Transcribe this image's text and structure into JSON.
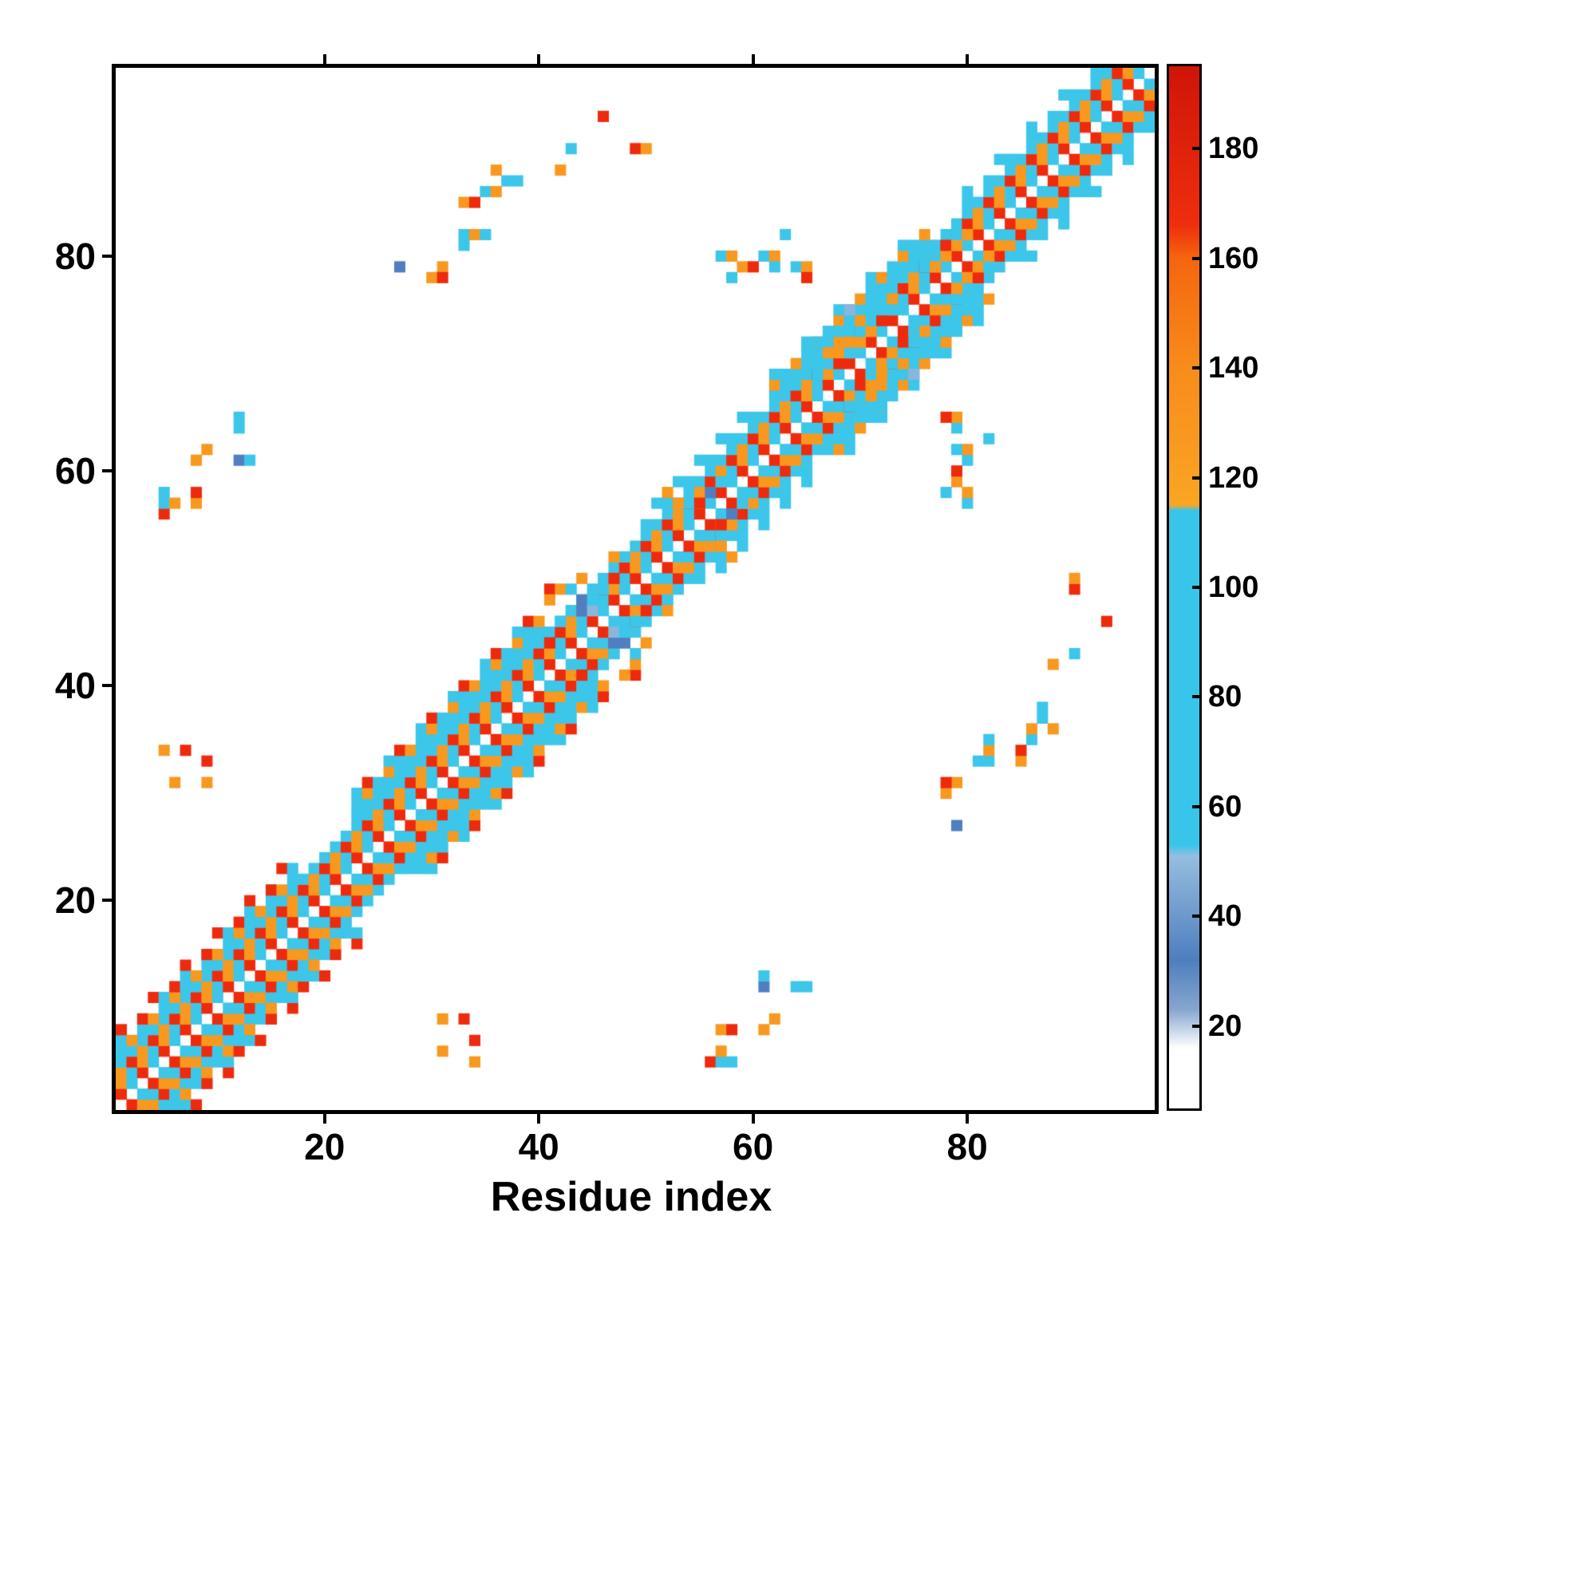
{
  "chart_data": {
    "type": "heatmap",
    "title": "",
    "xlabel": "Residue index",
    "ylabel": "Residue index",
    "n_residues": 97,
    "x_ticks": [
      20,
      40,
      60,
      80
    ],
    "y_ticks": [
      20,
      40,
      60,
      80
    ],
    "grid": false,
    "background": "#ffffff",
    "colorbar": {
      "ticks": [
        20,
        40,
        60,
        80,
        100,
        120,
        140,
        160,
        180
      ],
      "range": [
        5,
        195
      ],
      "stops": [
        {
          "v": 5,
          "c": "#cf1508"
        },
        {
          "v": 34,
          "c": "#ee2e0d"
        },
        {
          "v": 40,
          "c": "#f6650f"
        },
        {
          "v": 60,
          "c": "#f88c1a"
        },
        {
          "v": 85,
          "c": "#f9a623"
        },
        {
          "v": 86,
          "c": "#38c5ea"
        },
        {
          "v": 147,
          "c": "#38c5ea"
        },
        {
          "v": 149,
          "c": "#96bddf"
        },
        {
          "v": 168,
          "c": "#4d7fbd"
        },
        {
          "v": 177,
          "c": "#87a6cf"
        },
        {
          "v": 182,
          "c": "#dce6f2"
        },
        {
          "v": 184,
          "c": "#ffffff"
        },
        {
          "v": 195,
          "c": "#ffffff"
        }
      ]
    },
    "value_colors": [
      {
        "max": 38,
        "color": "#ee2a0d"
      },
      {
        "max": 86,
        "color": "#f8981f"
      },
      {
        "max": 148,
        "color": "#3cc6e9"
      },
      {
        "max": 158,
        "color": "#8ab6dc"
      },
      {
        "max": 176,
        "color": "#4f7fc0"
      },
      {
        "max": 999,
        "color": "#ffffff"
      }
    ],
    "symmetric": true,
    "band_segments": [
      {
        "s": 1,
        "e": 96,
        "off": [
          {
            "d": 1,
            "v": 20,
            "step": 2,
            "ph": 0
          },
          {
            "d": 1,
            "v": 110,
            "step": 2,
            "ph": 1
          },
          {
            "d": 2,
            "v": 65,
            "step": 2,
            "ph": 0
          },
          {
            "d": 2,
            "v": 110,
            "step": 2,
            "ph": 1
          },
          {
            "d": 3,
            "v": 65,
            "step": 2,
            "ph": 0
          },
          {
            "d": 3,
            "v": 20,
            "step": 2,
            "ph": 1
          },
          {
            "d": 4,
            "v": 110,
            "step": 1,
            "ph": 0
          }
        ]
      },
      {
        "s": 1,
        "e": 17,
        "off": [
          {
            "d": 5,
            "v": 110,
            "step": 2,
            "ph": 0
          },
          {
            "d": 5,
            "v": 65,
            "step": 2,
            "ph": 1
          },
          {
            "d": 6,
            "v": 110,
            "step": 2,
            "ph": 0
          },
          {
            "d": 6,
            "v": 20,
            "step": 3,
            "ph": 2
          },
          {
            "d": 7,
            "v": 20,
            "step": 3,
            "ph": 0
          }
        ]
      },
      {
        "s": 23,
        "e": 40,
        "off": [
          {
            "d": 5,
            "v": 110,
            "step": 1,
            "ph": 0
          },
          {
            "d": 6,
            "v": 110,
            "step": 2,
            "ph": 0
          },
          {
            "d": 6,
            "v": 65,
            "step": 2,
            "ph": 1
          },
          {
            "d": 7,
            "v": 110,
            "step": 3,
            "ph": 0
          },
          {
            "d": 7,
            "v": 20,
            "step": 3,
            "ph": 1
          }
        ]
      },
      {
        "s": 50,
        "e": 60,
        "off": [
          {
            "d": 5,
            "v": 110,
            "step": 2,
            "ph": 0
          },
          {
            "d": 6,
            "v": 110,
            "step": 2,
            "ph": 1
          }
        ]
      },
      {
        "s": 62,
        "e": 76,
        "off": [
          {
            "d": 5,
            "v": 110,
            "step": 1,
            "ph": 0
          },
          {
            "d": 6,
            "v": 65,
            "step": 2,
            "ph": 0
          },
          {
            "d": 6,
            "v": 110,
            "step": 2,
            "ph": 1
          },
          {
            "d": 7,
            "v": 110,
            "step": 3,
            "ph": 0
          }
        ]
      },
      {
        "s": 80,
        "e": 92,
        "off": [
          {
            "d": 5,
            "v": 110,
            "step": 2,
            "ph": 0
          },
          {
            "d": 6,
            "v": 110,
            "step": 3,
            "ph": 0
          }
        ]
      }
    ],
    "cells": [
      [
        27,
        79,
        165
      ],
      [
        30,
        78,
        65
      ],
      [
        31,
        79,
        65
      ],
      [
        31,
        78,
        20
      ],
      [
        33,
        81,
        110
      ],
      [
        33,
        82,
        110
      ],
      [
        34,
        82,
        65
      ],
      [
        33,
        85,
        65
      ],
      [
        34,
        85,
        20
      ],
      [
        35,
        82,
        110
      ],
      [
        35,
        86,
        110
      ],
      [
        36,
        86,
        65
      ],
      [
        36,
        88,
        65
      ],
      [
        37,
        87,
        110
      ],
      [
        38,
        87,
        110
      ],
      [
        42,
        88,
        65
      ],
      [
        43,
        90,
        110
      ],
      [
        46,
        93,
        20
      ],
      [
        49,
        90,
        20
      ],
      [
        50,
        90,
        65
      ],
      [
        57,
        80,
        110
      ],
      [
        58,
        80,
        65
      ],
      [
        58,
        78,
        110
      ],
      [
        59,
        79,
        65
      ],
      [
        60,
        79,
        20
      ],
      [
        61,
        80,
        110
      ],
      [
        62,
        80,
        65
      ],
      [
        62,
        79,
        110
      ],
      [
        63,
        82,
        110
      ],
      [
        64,
        79,
        110
      ],
      [
        65,
        79,
        65
      ],
      [
        65,
        78,
        20
      ],
      [
        5,
        56,
        20
      ],
      [
        5,
        57,
        110
      ],
      [
        5,
        58,
        110
      ],
      [
        6,
        57,
        65
      ],
      [
        8,
        57,
        65
      ],
      [
        8,
        58,
        20
      ],
      [
        8,
        61,
        65
      ],
      [
        9,
        62,
        65
      ],
      [
        12,
        61,
        165
      ],
      [
        12,
        64,
        110
      ],
      [
        12,
        65,
        110
      ],
      [
        13,
        61,
        110
      ],
      [
        5,
        34,
        65
      ],
      [
        7,
        34,
        20
      ],
      [
        6,
        31,
        65
      ],
      [
        9,
        33,
        20
      ],
      [
        9,
        31,
        65
      ],
      [
        41,
        49,
        20
      ],
      [
        42,
        49,
        65
      ],
      [
        43,
        47,
        110
      ],
      [
        44,
        47,
        165
      ],
      [
        44,
        48,
        165
      ],
      [
        45,
        47,
        152
      ],
      [
        45,
        48,
        110
      ],
      [
        46,
        49,
        110
      ],
      [
        41,
        48,
        65
      ],
      [
        42,
        46,
        110
      ],
      [
        43,
        49,
        110
      ],
      [
        47,
        50,
        20
      ],
      [
        44,
        50,
        65
      ],
      [
        41,
        44,
        20
      ],
      [
        48,
        52,
        110
      ],
      [
        47,
        52,
        65
      ],
      [
        54,
        57,
        110
      ],
      [
        55,
        58,
        65
      ],
      [
        56,
        58,
        165
      ],
      [
        55,
        57,
        20
      ],
      [
        53,
        57,
        65
      ],
      [
        52,
        58,
        65
      ],
      [
        57,
        59,
        110
      ],
      [
        66,
        69,
        110
      ],
      [
        66,
        70,
        110
      ],
      [
        67,
        70,
        110
      ],
      [
        67,
        71,
        65
      ],
      [
        68,
        70,
        20
      ],
      [
        68,
        71,
        65
      ],
      [
        68,
        72,
        65
      ],
      [
        69,
        71,
        110
      ],
      [
        69,
        72,
        65
      ],
      [
        69,
        74,
        110
      ],
      [
        70,
        72,
        65
      ],
      [
        70,
        73,
        110
      ],
      [
        70,
        74,
        65
      ],
      [
        71,
        73,
        65
      ],
      [
        71,
        74,
        110
      ],
      [
        72,
        74,
        20
      ],
      [
        72,
        75,
        110
      ],
      [
        72,
        76,
        110
      ],
      [
        68,
        73,
        110
      ],
      [
        66,
        72,
        110
      ],
      [
        73,
        76,
        65
      ],
      [
        73,
        75,
        110
      ],
      [
        69,
        75,
        152
      ],
      [
        71,
        76,
        110
      ],
      [
        76,
        79,
        110
      ],
      [
        77,
        80,
        110
      ],
      [
        78,
        80,
        65
      ],
      [
        78,
        81,
        20
      ],
      [
        79,
        81,
        65
      ],
      [
        79,
        82,
        110
      ],
      [
        77,
        79,
        65
      ],
      [
        80,
        82,
        65
      ]
    ]
  }
}
